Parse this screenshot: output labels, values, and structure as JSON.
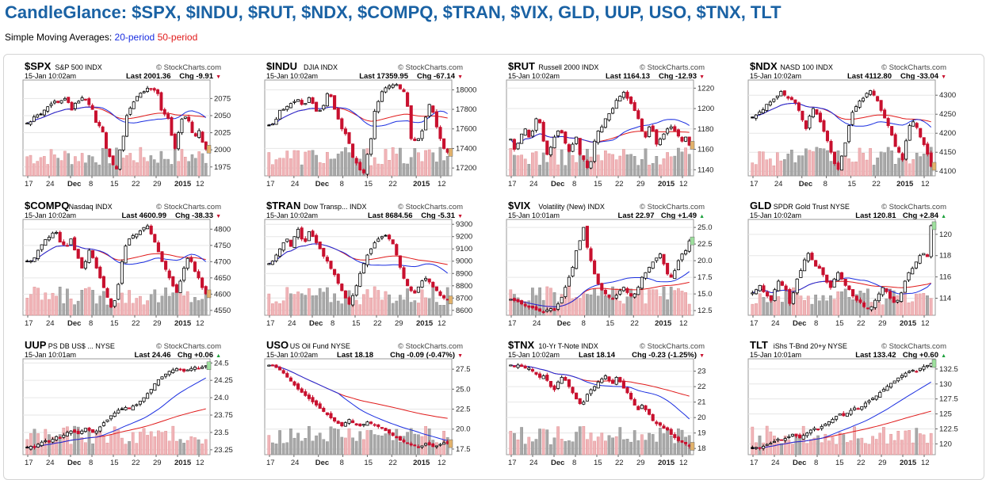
{
  "page": {
    "title": "CandleGlance: $SPX, $INDU, $RUT, $NDX, $COMPQ, $TRAN, $VIX, GLD, UUP, USO, $TNX, TLT",
    "sma_prefix": "Simple Moving Averages:",
    "sma_20_label": "20-period",
    "sma_50_label": "50-period"
  },
  "colors": {
    "title": "#1a62a4",
    "sma20": "#1a2ee0",
    "sma50": "#e01a1a",
    "up_candle_border": "#000000",
    "down_candle": "#c8102e",
    "volume_up": "#f0b4b8",
    "volume_down": "#a8a8a8"
  },
  "chart_data": [
    {
      "type": "candlestick",
      "symbol": "$SPX",
      "name": "S&P 500",
      "exchange": "INDX",
      "date": "15-Jan 10:02am",
      "last": "2001.36",
      "chg": "-9.91",
      "chg_dir": "down",
      "watermark": "© StockCharts.com",
      "ylim": [
        1962,
        2102
      ],
      "yticks": [
        1975,
        2000,
        2025,
        2050,
        2075
      ],
      "xticks": [
        "17",
        "24",
        "Dec",
        "8",
        "15",
        "22",
        "29",
        "2015",
        "12"
      ],
      "closes": [
        2039,
        2041,
        2048,
        2051,
        2052,
        2058,
        2063,
        2067,
        2071,
        2069,
        2072,
        2075,
        2069,
        2058,
        2068,
        2071,
        2076,
        2074,
        2066,
        2059,
        2040,
        2035,
        2026,
        2002,
        1990,
        1978,
        1972,
        2000,
        2020,
        2050,
        2061,
        2070,
        2078,
        2083,
        2085,
        2090,
        2089,
        2087,
        2082,
        2058,
        2052,
        2046,
        2021,
        2002,
        2025,
        2045,
        2048,
        2042,
        2025,
        2020,
        2028,
        2011,
        2001
      ]
    },
    {
      "type": "candlestick",
      "symbol": "$INDU",
      "name": "DJIA",
      "exchange": "INDX",
      "date": "15-Jan 10:02am",
      "last": "17359.95",
      "chg": "-67.14",
      "chg_dir": "down",
      "watermark": "© StockCharts.com",
      "ylim": [
        17120,
        18100
      ],
      "yticks": [
        17200,
        17400,
        17600,
        17800,
        18000
      ],
      "xticks": [
        "17",
        "24",
        "Dec",
        "8",
        "15",
        "22",
        "2015",
        "12"
      ],
      "closes": [
        17640,
        17650,
        17700,
        17790,
        17800,
        17830,
        17860,
        17880,
        17900,
        17850,
        17860,
        17920,
        17860,
        17780,
        17790,
        17840,
        17960,
        17930,
        17800,
        17700,
        17600,
        17550,
        17450,
        17310,
        17250,
        17180,
        17150,
        17340,
        17500,
        17780,
        17880,
        17980,
        18020,
        18040,
        18050,
        18053,
        18010,
        17980,
        17830,
        17500,
        17480,
        17500,
        17580,
        17720,
        17850,
        17770,
        17620,
        17500,
        17400,
        17360
      ]
    },
    {
      "type": "candlestick",
      "symbol": "$RUT",
      "name": "Russell 2000",
      "exchange": "INDX",
      "date": "15-Jan 10:02am",
      "last": "1164.13",
      "chg": "-12.93",
      "chg_dir": "down",
      "watermark": "© StockCharts.com",
      "ylim": [
        1134,
        1228
      ],
      "yticks": [
        1140,
        1160,
        1180,
        1200,
        1220
      ],
      "xticks": [
        "17",
        "24",
        "Dec",
        "8",
        "15",
        "22",
        "29",
        "2015",
        "12"
      ],
      "closes": [
        1170,
        1160,
        1166,
        1175,
        1180,
        1172,
        1178,
        1190,
        1186,
        1168,
        1155,
        1162,
        1172,
        1178,
        1176,
        1166,
        1158,
        1165,
        1172,
        1155,
        1150,
        1142,
        1148,
        1168,
        1178,
        1182,
        1190,
        1195,
        1200,
        1208,
        1212,
        1216,
        1210,
        1205,
        1198,
        1190,
        1178,
        1172,
        1182,
        1178,
        1165,
        1170,
        1175,
        1180,
        1182,
        1178,
        1173,
        1168,
        1172,
        1164
      ]
    },
    {
      "type": "candlestick",
      "symbol": "$NDX",
      "name": "NASD 100",
      "exchange": "INDX",
      "date": "15-Jan 10:02am",
      "last": "4112.80",
      "chg": "-33.04",
      "chg_dir": "down",
      "watermark": "© StockCharts.com",
      "ylim": [
        4088,
        4340
      ],
      "yticks": [
        4100,
        4150,
        4200,
        4250,
        4300
      ],
      "xticks": [
        "17",
        "24",
        "Dec",
        "8",
        "15",
        "22",
        "2015",
        "12"
      ],
      "closes": [
        4240,
        4248,
        4256,
        4262,
        4276,
        4282,
        4290,
        4298,
        4310,
        4300,
        4292,
        4288,
        4280,
        4260,
        4235,
        4212,
        4245,
        4265,
        4250,
        4230,
        4205,
        4180,
        4150,
        4120,
        4105,
        4140,
        4175,
        4220,
        4255,
        4270,
        4285,
        4292,
        4305,
        4312,
        4300,
        4285,
        4260,
        4240,
        4220,
        4195,
        4165,
        4150,
        4130,
        4180,
        4220,
        4230,
        4215,
        4190,
        4170,
        4145,
        4113
      ]
    },
    {
      "type": "candlestick",
      "symbol": "$COMPQ",
      "name": "Nasdaq",
      "exchange": "INDX",
      "date": "15-Jan 10:02am",
      "last": "4600.99",
      "chg": "-38.33",
      "chg_dir": "down",
      "watermark": "© StockCharts.com",
      "ylim": [
        4535,
        4830
      ],
      "yticks": [
        4550,
        4600,
        4650,
        4700,
        4750,
        4800
      ],
      "xticks": [
        "17",
        "24",
        "Dec",
        "8",
        "15",
        "22",
        "29",
        "2015",
        "12"
      ],
      "closes": [
        4700,
        4702,
        4712,
        4735,
        4752,
        4768,
        4775,
        4788,
        4790,
        4760,
        4752,
        4748,
        4770,
        4736,
        4710,
        4680,
        4700,
        4735,
        4712,
        4680,
        4650,
        4620,
        4590,
        4560,
        4580,
        4630,
        4700,
        4748,
        4770,
        4780,
        4785,
        4795,
        4805,
        4810,
        4785,
        4760,
        4730,
        4700,
        4676,
        4650,
        4625,
        4605,
        4640,
        4680,
        4710,
        4700,
        4670,
        4650,
        4620,
        4601
      ]
    },
    {
      "type": "candlestick",
      "symbol": "$TRAN",
      "name": "Dow Transp...",
      "exchange": "INDX",
      "date": "15-Jan 10:02am",
      "last": "8684.56",
      "chg": "-5.31",
      "chg_dir": "down",
      "watermark": "© StockCharts.com",
      "ylim": [
        8560,
        9340
      ],
      "yticks": [
        8600,
        8700,
        8800,
        8900,
        9000,
        9100,
        9200,
        9300
      ],
      "xticks": [
        "17",
        "24",
        "Dec",
        "8",
        "15",
        "22",
        "29",
        "2015",
        "12"
      ],
      "closes": [
        8980,
        9000,
        9050,
        9100,
        9150,
        9180,
        9120,
        9200,
        9260,
        9180,
        9160,
        9240,
        9200,
        9150,
        9100,
        9040,
        9000,
        8940,
        8890,
        8820,
        8760,
        8700,
        8650,
        8720,
        8800,
        8900,
        8980,
        9050,
        9100,
        9150,
        9180,
        9200,
        9210,
        9180,
        9140,
        9050,
        8950,
        8860,
        8800,
        8760,
        8740,
        8790,
        8840,
        8860,
        8830,
        8790,
        8760,
        8720,
        8700,
        8685
      ]
    },
    {
      "type": "candlestick",
      "symbol": "$VIX",
      "name": "Volatility (New)",
      "exchange": "INDX",
      "date": "15-Jan 10:01am",
      "last": "22.97",
      "chg": "+1.49",
      "chg_dir": "up",
      "watermark": "© StockCharts.com",
      "ylim": [
        11.8,
        26.2
      ],
      "yticks": [
        12.5,
        15.0,
        17.5,
        20.0,
        22.5,
        25.0
      ],
      "xticks": [
        "17",
        "24",
        "Dec",
        "8",
        "15",
        "22",
        "2015",
        "12"
      ],
      "closes": [
        14.2,
        14.0,
        13.8,
        13.5,
        13.2,
        13.0,
        12.9,
        12.6,
        12.4,
        12.3,
        12.6,
        12.8,
        12.5,
        13.5,
        14.5,
        16.0,
        17.5,
        19.0,
        21.5,
        23.0,
        25.0,
        22.0,
        20.0,
        18.0,
        16.5,
        15.6,
        15.0,
        14.5,
        14.2,
        14.8,
        15.5,
        16.0,
        15.2,
        14.7,
        15.0,
        16.0,
        17.5,
        18.2,
        19.0,
        19.8,
        20.4,
        21.0,
        19.5,
        18.0,
        17.5,
        18.5,
        20.0,
        21.0,
        21.5,
        22.97
      ]
    },
    {
      "type": "candlestick",
      "symbol": "GLD",
      "name": "SPDR Gold Trust",
      "exchange": "NYSE",
      "date": "15-Jan 10:02am",
      "last": "120.81",
      "chg": "+2.84",
      "chg_dir": "up",
      "watermark": "© StockCharts.com",
      "ylim": [
        112.4,
        121.4
      ],
      "yticks": [
        114,
        116,
        118,
        120
      ],
      "xticks": [
        "17",
        "24",
        "Dec",
        "8",
        "15",
        "22",
        "29",
        "2015",
        "12"
      ],
      "closes": [
        114.5,
        114.8,
        115.2,
        114.6,
        114.2,
        113.8,
        114.8,
        115.6,
        115.2,
        114.8,
        113.5,
        114.5,
        115.8,
        116.6,
        117.6,
        118.2,
        117.6,
        117.0,
        116.8,
        116.2,
        115.5,
        115.0,
        115.8,
        116.4,
        115.8,
        115.2,
        114.8,
        114.2,
        113.8,
        113.6,
        113.2,
        113.0,
        113.2,
        113.8,
        114.4,
        115.0,
        114.6,
        114.0,
        113.6,
        113.8,
        114.5,
        115.6,
        116.4,
        116.8,
        117.4,
        118.0,
        118.2,
        117.9,
        120.81
      ]
    },
    {
      "type": "candlestick",
      "symbol": "UUP",
      "name": "PS DB US$ ...",
      "exchange": "NYSE",
      "date": "15-Jan 10:01am",
      "last": "24.46",
      "chg": "+0.06",
      "chg_dir": "up",
      "watermark": "© StockCharts.com",
      "ylim": [
        23.18,
        24.56
      ],
      "yticks": [
        23.25,
        23.5,
        23.75,
        24.0,
        24.25,
        24.5
      ],
      "xticks": [
        "17",
        "24",
        "Dec",
        "8",
        "15",
        "22",
        "29",
        "2015",
        "12"
      ],
      "closes": [
        23.28,
        23.3,
        23.28,
        23.33,
        23.36,
        23.38,
        23.36,
        23.4,
        23.44,
        23.42,
        23.46,
        23.5,
        23.52,
        23.5,
        23.48,
        23.52,
        23.56,
        23.53,
        23.5,
        23.52,
        23.58,
        23.64,
        23.68,
        23.74,
        23.78,
        23.82,
        23.84,
        23.86,
        23.84,
        23.88,
        23.9,
        23.95,
        24.0,
        24.06,
        24.12,
        24.2,
        24.26,
        24.3,
        24.34,
        24.38,
        24.4,
        24.42,
        24.4,
        24.38,
        24.4,
        24.42,
        24.44,
        24.42,
        24.44,
        24.46
      ]
    },
    {
      "type": "candlestick",
      "symbol": "USO",
      "name": "US Oil Fund",
      "exchange": "NYSE",
      "date": "15-Jan 10:02am",
      "last": "18.18",
      "chg": "-0.09 (-0.47%)",
      "chg_dir": "down",
      "watermark": "© StockCharts.com",
      "ylim": [
        16.8,
        28.8
      ],
      "yticks": [
        17.5,
        20.0,
        22.5,
        25.0,
        27.5
      ],
      "xticks": [
        "17",
        "24",
        "Dec",
        "8",
        "15",
        "22",
        "2015",
        "12"
      ],
      "closes": [
        28.0,
        27.9,
        27.7,
        27.4,
        27.0,
        26.5,
        26.0,
        25.5,
        25.0,
        24.6,
        24.2,
        23.8,
        23.4,
        23.0,
        22.6,
        22.2,
        21.8,
        21.4,
        21.0,
        20.7,
        20.4,
        20.8,
        21.2,
        20.8,
        20.5,
        20.4,
        20.6,
        20.9,
        20.7,
        20.5,
        20.3,
        20.1,
        19.8,
        19.5,
        19.2,
        18.9,
        18.6,
        18.4,
        18.2,
        18.0,
        17.9,
        17.8,
        17.9,
        18.2,
        18.0,
        17.8,
        17.9,
        18.1,
        18.3,
        18.18
      ]
    },
    {
      "type": "candlestick",
      "symbol": "$TNX",
      "name": "10-Yr T-Note",
      "exchange": "INDX",
      "date": "15-Jan 10:02am",
      "last": "18.14",
      "chg": "-0.23 (-1.25%)",
      "chg_dir": "down",
      "watermark": "© StockCharts.com",
      "ylim": [
        17.6,
        23.8
      ],
      "yticks": [
        18,
        19,
        20,
        21,
        22,
        23
      ],
      "xticks": [
        "17",
        "24",
        "Dec",
        "8",
        "15",
        "22",
        "29",
        "2015",
        "12"
      ],
      "closes": [
        23.4,
        23.3,
        23.4,
        23.3,
        23.2,
        23.2,
        23.0,
        22.8,
        22.6,
        22.7,
        22.4,
        22.0,
        21.8,
        22.3,
        22.6,
        22.4,
        22.0,
        21.6,
        21.2,
        20.9,
        21.0,
        21.5,
        21.8,
        22.0,
        22.3,
        22.5,
        22.7,
        22.4,
        22.2,
        22.6,
        22.3,
        21.9,
        21.6,
        21.2,
        20.8,
        20.5,
        20.8,
        20.5,
        20.2,
        19.8,
        19.6,
        19.5,
        19.3,
        19.2,
        18.9,
        18.7,
        18.5,
        18.4,
        18.3,
        18.14
      ]
    },
    {
      "type": "candlestick",
      "symbol": "TLT",
      "name": "iShs T-Bnd 20+y",
      "exchange": "NYSE",
      "date": "15-Jan 10:01am",
      "last": "133.42",
      "chg": "+0.60",
      "chg_dir": "up",
      "watermark": "© StockCharts.com",
      "ylim": [
        118.2,
        134.2
      ],
      "yticks": [
        120.0,
        122.5,
        125.0,
        127.5,
        130.0,
        132.5
      ],
      "xticks": [
        "17",
        "24",
        "Dec",
        "8",
        "15",
        "22",
        "29",
        "2015",
        "12"
      ],
      "closes": [
        119.2,
        119.4,
        119.3,
        119.6,
        119.9,
        120.1,
        120.4,
        120.8,
        120.6,
        120.9,
        121.2,
        121.6,
        121.3,
        121.0,
        121.4,
        121.8,
        122.3,
        122.6,
        122.4,
        122.9,
        123.3,
        123.7,
        124.1,
        124.6,
        125.0,
        124.7,
        125.1,
        125.6,
        126.0,
        125.8,
        126.2,
        126.8,
        127.2,
        127.6,
        128.0,
        128.6,
        129.1,
        129.6,
        130.1,
        130.5,
        131.0,
        131.4,
        131.8,
        132.1,
        132.3,
        132.1,
        132.6,
        132.9,
        133.1,
        133.42
      ]
    }
  ]
}
